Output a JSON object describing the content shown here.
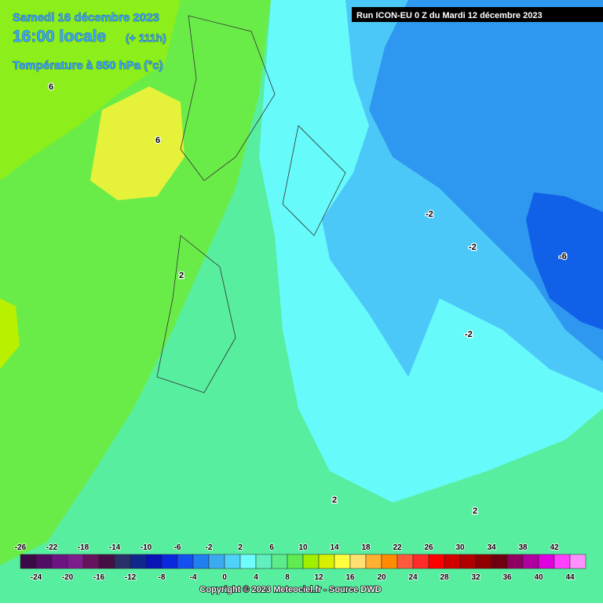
{
  "header": {
    "date": "Samedi 16 décembre 2023",
    "time": "16:00 locale",
    "lead": "(+ 111h)",
    "field": "Température à 850 hPa (°c)",
    "run": "Run ICON-EU 0 Z du Mardi 12 décembre 2023"
  },
  "contour_labels": [
    6,
    6,
    2,
    -2,
    -2,
    -6,
    -2,
    2,
    2
  ],
  "scale": {
    "values": [
      -26,
      -24,
      -22,
      -20,
      -18,
      -16,
      -14,
      -12,
      -10,
      -8,
      -6,
      -4,
      -2,
      0,
      2,
      4,
      6,
      8,
      10,
      12,
      14,
      16,
      18,
      20,
      22,
      24,
      26,
      28,
      30,
      32,
      34,
      36,
      38,
      40,
      42,
      44
    ],
    "colors": [
      "#3c0a46",
      "#520c64",
      "#6e1482",
      "#7e1e8c",
      "#66125e",
      "#461046",
      "#2a3068",
      "#10288c",
      "#0a14b4",
      "#0a28dc",
      "#1450f0",
      "#2080f0",
      "#3caaf0",
      "#50d2f8",
      "#70fcfc",
      "#60f0c0",
      "#5cec8c",
      "#60ec50",
      "#9ef000",
      "#d8f000",
      "#ffff40",
      "#ffe070",
      "#ffb030",
      "#ff8c00",
      "#ff5a3c",
      "#ff2a2a",
      "#ff0000",
      "#d00000",
      "#b00000",
      "#900000",
      "#700010",
      "#900060",
      "#b000a0",
      "#e000e0",
      "#ff40ff",
      "#ff90ff"
    ]
  },
  "footer": {
    "copyright": "Copyright © 2023 Meteociel.fr - Source DWD"
  }
}
